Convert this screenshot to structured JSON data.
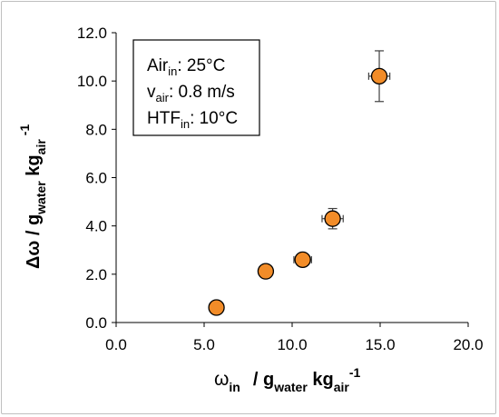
{
  "chart_data": {
    "type": "scatter",
    "xlim": [
      0,
      20
    ],
    "ylim": [
      0,
      12
    ],
    "x_ticks": [
      "0.0",
      "5.0",
      "10.0",
      "15.0",
      "20.0"
    ],
    "y_ticks": [
      "0.0",
      "2.0",
      "4.0",
      "6.0",
      "8.0",
      "10.0",
      "12.0"
    ],
    "xlabel": {
      "symbol": "ω",
      "symbol_sub": "in",
      "unit_prefix": "/ g",
      "unit_sub1": "water",
      "unit_mid": " kg",
      "unit_sub2": "air",
      "unit_sup": "-1"
    },
    "ylabel": {
      "symbol": "Δω",
      "unit_prefix": " / g",
      "unit_sub1": "water",
      "unit_mid": " kg",
      "unit_sub2": "air",
      "unit_sup": "-1"
    },
    "grid": false,
    "marker_color": "#f28c28",
    "marker_edge": "#000000",
    "points": [
      {
        "x": 5.7,
        "y": 0.62,
        "xerr": 0.0,
        "yerr": 0.0
      },
      {
        "x": 8.5,
        "y": 2.12,
        "xerr": 0.0,
        "yerr": 0.0
      },
      {
        "x": 10.6,
        "y": 2.6,
        "xerr": 0.5,
        "yerr": 0.0
      },
      {
        "x": 12.3,
        "y": 4.3,
        "xerr": 0.6,
        "yerr": 0.42
      },
      {
        "x": 14.95,
        "y": 10.2,
        "xerr": 0.6,
        "yerr": 1.05
      }
    ],
    "annotation": {
      "line1": {
        "base": "Air",
        "sub": "in",
        "rest": ": 25°C"
      },
      "line2": {
        "base": "v",
        "sub": "air",
        "rest": ": 0.8 m/s"
      },
      "line3": {
        "base": "HTF",
        "sub": "in",
        "rest": ": 10°C"
      }
    }
  }
}
